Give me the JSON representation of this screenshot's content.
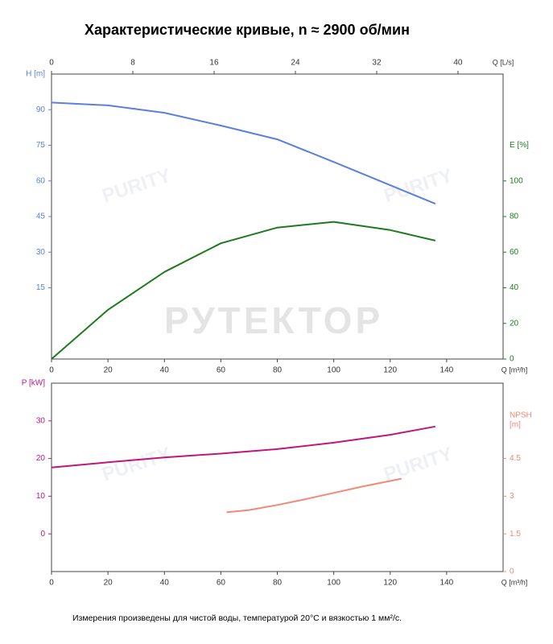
{
  "title": "Характеристические кривые, n ≈ 2900 об/мин",
  "footnote": "Измерения произведены для чистой воды, температурой 20°C и вязкостью 1 мм²/с.",
  "watermark": "РУТЕКТОР",
  "logo": "PURITY",
  "chart_data": [
    {
      "type": "line",
      "xlabel": "Q [m³/h]",
      "xlim": [
        0,
        160
      ],
      "xticks": [
        0,
        20,
        40,
        60,
        80,
        100,
        120,
        140
      ],
      "x2label": "Q [L/s]",
      "x2lim": [
        0,
        44.44
      ],
      "x2ticks": [
        0,
        8,
        16,
        24,
        32,
        40
      ],
      "ylabel": "H [m]",
      "ylim": [
        -15,
        105
      ],
      "yticks": [
        15,
        30,
        45,
        60,
        75,
        90
      ],
      "ycolor": "#5b7fe0",
      "y2label": "E [%]",
      "y2lim": [
        0,
        160
      ],
      "y2ticks": [
        0,
        20,
        40,
        60,
        80,
        100
      ],
      "y2color": "#1e7a1e",
      "series": [
        {
          "name": "H",
          "color": "#5b7fe0",
          "x": [
            0,
            20,
            40,
            60,
            80,
            100,
            120,
            136
          ],
          "values": [
            93,
            91.8,
            88.7,
            83.3,
            77.5,
            68,
            58.2,
            50.4
          ]
        },
        {
          "name": "E",
          "color": "#1e7a1e",
          "axis": "y2",
          "x": [
            0,
            20,
            40,
            60,
            80,
            100,
            120,
            136
          ],
          "values": [
            0,
            27.6,
            48.9,
            65,
            73.8,
            77,
            72.4,
            66.5
          ]
        }
      ]
    },
    {
      "type": "line",
      "xlabel": "Q [m³/h]",
      "xlim": [
        0,
        160
      ],
      "xticks": [
        0,
        20,
        40,
        60,
        80,
        100,
        120,
        140
      ],
      "ylabel": "P [kW]",
      "ylim": [
        -10,
        40
      ],
      "yticks": [
        0,
        10,
        20,
        30
      ],
      "ycolor": "#c0187a",
      "y2label": [
        "NPSH",
        "[m]"
      ],
      "y2lim": [
        0,
        7.5
      ],
      "y2ticks": [
        0,
        1.5,
        3,
        4.5
      ],
      "y2color": "#f08a78",
      "series": [
        {
          "name": "P",
          "color": "#c0187a",
          "x": [
            0,
            20,
            40,
            60,
            80,
            100,
            120,
            136
          ],
          "values": [
            17.6,
            19,
            20.3,
            21.3,
            22.5,
            24.2,
            26.3,
            28.5
          ]
        },
        {
          "name": "NPSH",
          "color": "#f08a78",
          "axis": "y2",
          "x": [
            62,
            70,
            80,
            90,
            100,
            110,
            124
          ],
          "values": [
            2.36,
            2.45,
            2.65,
            2.88,
            3.13,
            3.38,
            3.7
          ]
        }
      ]
    }
  ]
}
